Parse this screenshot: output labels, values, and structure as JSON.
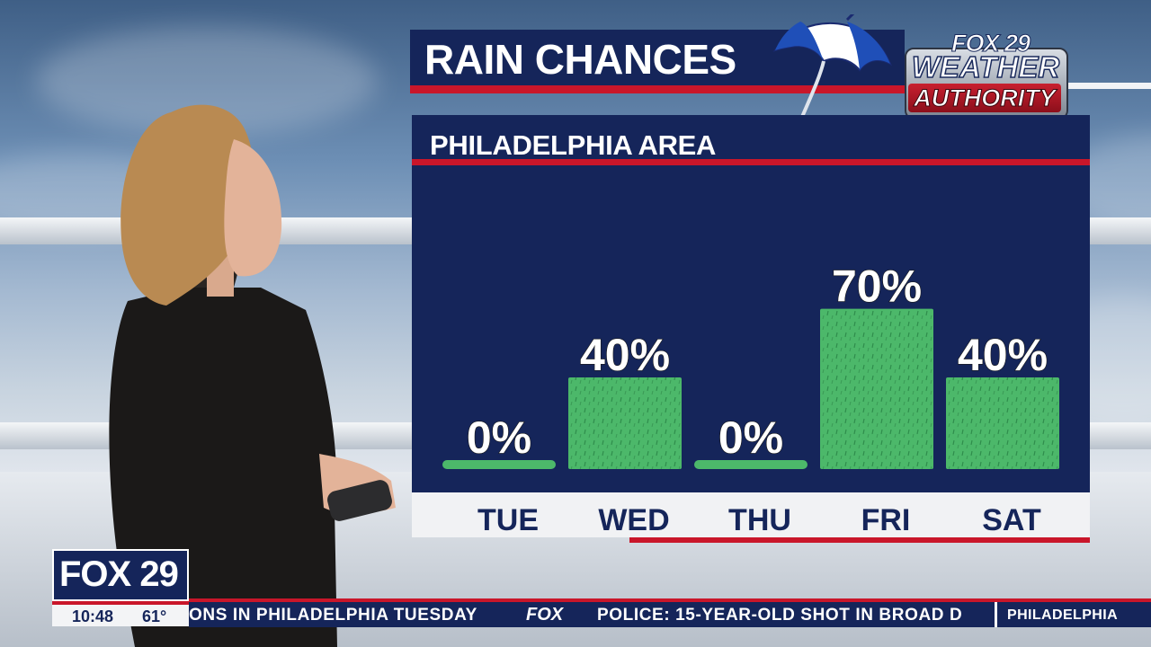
{
  "graphic": {
    "title": "RAIN CHANCES",
    "subtitle": "PHILADELPHIA AREA"
  },
  "logo": {
    "top": "FOX 29",
    "middle": "WEATHER",
    "bottom": "AUTHORITY"
  },
  "chart_data": {
    "type": "bar",
    "categories": [
      "TUE",
      "WED",
      "THU",
      "FRI",
      "SAT"
    ],
    "values": [
      0,
      40,
      0,
      70,
      40
    ],
    "data_labels": [
      "0%",
      "40%",
      "0%",
      "70%",
      "40%"
    ],
    "unit": "%",
    "ylim": [
      0,
      100
    ],
    "grid": false,
    "bar_color": "#4cb86a"
  },
  "station_bug": {
    "logo": "FOX 29",
    "time": "10:48",
    "temp": "61°"
  },
  "ticker": {
    "left_text": "ONS IN PHILADELPHIA TUESDAY",
    "brand": "FOX",
    "right_text": "POLICE: 15-YEAR-OLD SHOT IN BROAD D",
    "location": "PHILADELPHIA"
  },
  "colors": {
    "navy": "#15255a",
    "red": "#c9162a",
    "bar_green": "#4cb86a"
  },
  "icons": {
    "umbrella": "umbrella-icon"
  }
}
